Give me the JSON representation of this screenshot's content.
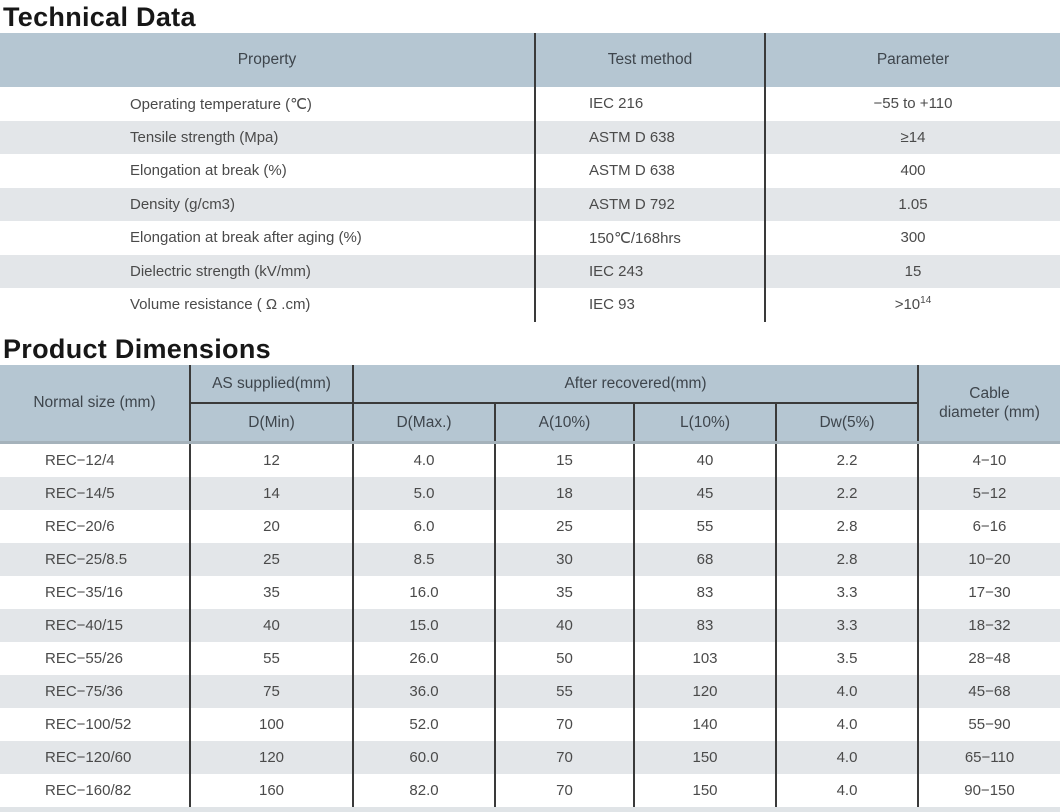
{
  "titles": {
    "technical_data": "Technical Data",
    "product_dimensions": "Product Dimensions"
  },
  "colors": {
    "header_bg": "#b5c6d2",
    "stripe_bg": "#e3e6e9",
    "grid_line": "#3a3a3a",
    "body_text": "#4a4a4a",
    "title_text": "#171717"
  },
  "technical_table": {
    "headers": {
      "property": "Property",
      "test_method": "Test method",
      "parameter": "Parameter"
    },
    "rows": [
      {
        "property": "Operating temperature (℃)",
        "test_method": "IEC 216",
        "parameter": "−55 to +110"
      },
      {
        "property": "Tensile strength (Mpa)",
        "test_method": "ASTM D 638",
        "parameter": "≥14"
      },
      {
        "property": "Elongation at break (%)",
        "test_method": "ASTM D 638",
        "parameter": "400"
      },
      {
        "property": "Density (g/cm3)",
        "test_method": "ASTM D 792",
        "parameter": "1.05"
      },
      {
        "property": "Elongation at break after aging (%)",
        "test_method": "150℃/168hrs",
        "parameter": "300"
      },
      {
        "property": "Dielectric strength (kV/mm)",
        "test_method": "IEC 243",
        "parameter": "15"
      },
      {
        "property": "Volume resistance ( Ω .cm)",
        "test_method": "IEC 93",
        "parameter": ">10",
        "parameter_sup": "14"
      }
    ]
  },
  "dimensions_table": {
    "headers": {
      "normal_size": "Normal size (mm)",
      "as_supplied": "AS supplied(mm)",
      "after_recovered": "After recovered(mm)",
      "cable_diameter_line1": "Cable",
      "cable_diameter_line2": "diameter (mm)",
      "d_min": "D(Min)",
      "d_max": "D(Max.)",
      "a10": "A(10%)",
      "l10": "L(10%)",
      "dw5": "Dw(5%)"
    },
    "rows": [
      {
        "size": "REC−12/4",
        "d_min": "12",
        "d_max": "4.0",
        "a": "15",
        "l": "40",
        "dw": "2.2",
        "cable": "4−10"
      },
      {
        "size": "REC−14/5",
        "d_min": "14",
        "d_max": "5.0",
        "a": "18",
        "l": "45",
        "dw": "2.2",
        "cable": "5−12"
      },
      {
        "size": "REC−20/6",
        "d_min": "20",
        "d_max": "6.0",
        "a": "25",
        "l": "55",
        "dw": "2.8",
        "cable": "6−16"
      },
      {
        "size": "REC−25/8.5",
        "d_min": "25",
        "d_max": "8.5",
        "a": "30",
        "l": "68",
        "dw": "2.8",
        "cable": "10−20"
      },
      {
        "size": "REC−35/16",
        "d_min": "35",
        "d_max": "16.0",
        "a": "35",
        "l": "83",
        "dw": "3.3",
        "cable": "17−30"
      },
      {
        "size": "REC−40/15",
        "d_min": "40",
        "d_max": "15.0",
        "a": "40",
        "l": "83",
        "dw": "3.3",
        "cable": "18−32"
      },
      {
        "size": "REC−55/26",
        "d_min": "55",
        "d_max": "26.0",
        "a": "50",
        "l": "103",
        "dw": "3.5",
        "cable": "28−48"
      },
      {
        "size": "REC−75/36",
        "d_min": "75",
        "d_max": "36.0",
        "a": "55",
        "l": "120",
        "dw": "4.0",
        "cable": "45−68"
      },
      {
        "size": "REC−100/52",
        "d_min": "100",
        "d_max": "52.0",
        "a": "70",
        "l": "140",
        "dw": "4.0",
        "cable": "55−90"
      },
      {
        "size": "REC−120/60",
        "d_min": "120",
        "d_max": "60.0",
        "a": "70",
        "l": "150",
        "dw": "4.0",
        "cable": "65−110"
      },
      {
        "size": "REC−160/82",
        "d_min": "160",
        "d_max": "82.0",
        "a": "70",
        "l": "150",
        "dw": "4.0",
        "cable": "90−150"
      }
    ]
  }
}
